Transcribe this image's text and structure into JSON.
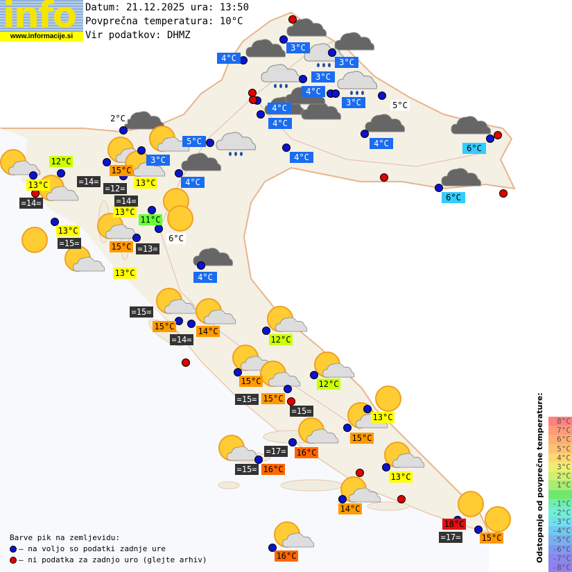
{
  "header": {
    "logo_text": "info",
    "logo_url": "www.informacije.si",
    "date_line": "Datum: 21.12.2025 ura: 13:50",
    "avg_temp_line": "Povprečna temperatura: 10°C",
    "source_line": "Vir podatkov: DHMZ"
  },
  "colors": {
    "blue": "#1a6cf0",
    "cyan": "#33ccff",
    "yellowgreen": "#ccff00",
    "green": "#66ff33",
    "yellow": "#ffff00",
    "orange": "#ff9900",
    "darkorange": "#ff6600",
    "red": "#e01010",
    "dark": "#333333",
    "dot_available": "#0a14d0",
    "dot_missing": "#e00000"
  },
  "labels": [
    "4°C",
    "3°C",
    "3°C",
    "3°C",
    "4°C",
    "3°C",
    "4°C",
    "4°C",
    "5°C",
    "3°C",
    "4°C",
    "4°C",
    "4°C",
    "4°C",
    "6°C",
    "6°C",
    "5°C",
    "2°C",
    "6°C",
    "12°C",
    "12°C",
    "12°C",
    "11°C",
    "13°C",
    "13°C",
    "13°C",
    "13°C",
    "13°C",
    "13°C",
    "13°C",
    "15°C",
    "15°C",
    "15°C",
    "14°C",
    "15°C",
    "15°C",
    "15°C",
    "14°C",
    "15°C",
    "16°C",
    "16°C",
    "16°C",
    "18°C",
    "=14=",
    "=12=",
    "=14=",
    "=14=",
    "=15=",
    "=13=",
    "=15=",
    "=14=",
    "=15=",
    "=15=",
    "=17=",
    "=15=",
    "=17="
  ],
  "legend": {
    "title": "Barve pik na zemljevidu:",
    "available": "– na voljo so podatki zadnje ure",
    "missing": "– ni podatka za zadnjo uro (glejte arhiv)"
  },
  "scale": {
    "title": "Odstopanje od povprečne temperature:",
    "steps": [
      "8°C",
      "7°C",
      "6°C",
      "5°C",
      "4°C",
      "3°C",
      "2°C",
      "1°C",
      "",
      "-1°C",
      "-2°C",
      "-3°C",
      "-4°C",
      "-5°C",
      "-6°C",
      "-7°C",
      "-8°C"
    ],
    "colors": [
      "#ff8080",
      "#ff9a7a",
      "#ffae70",
      "#ffc270",
      "#ffd870",
      "#f0ee70",
      "#d0ee70",
      "#a8ec70",
      "#70e870",
      "#70eeb0",
      "#70eed8",
      "#70e0ee",
      "#70c8ee",
      "#78b0f0",
      "#8098f0",
      "#8888f0",
      "#9080f0"
    ]
  }
}
